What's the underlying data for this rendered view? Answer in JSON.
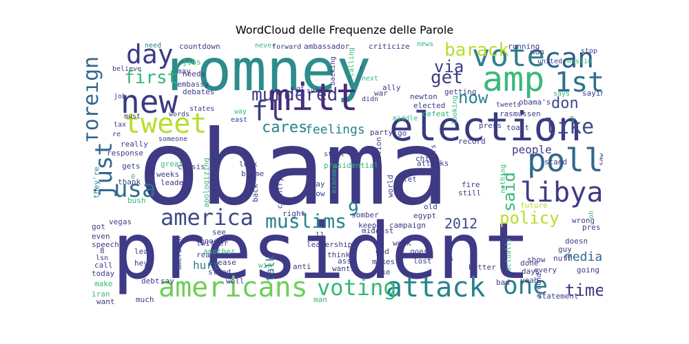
{
  "title": "WordCloud delle Frequenze delle Parole",
  "colors": [
    "#440154",
    "#482878",
    "#3e4989",
    "#31688e",
    "#26828e",
    "#1f9e89",
    "#35b779",
    "#6ece58",
    "#b5de2b",
    "#fde725"
  ],
  "words": [
    {
      "text": "obama",
      "size": 150,
      "color": "#3f3a84",
      "rotate": 0
    },
    {
      "text": "president",
      "size": 112,
      "color": "#3e3a86",
      "rotate": 0
    },
    {
      "text": "romney",
      "size": 84,
      "color": "#2d8c8c",
      "rotate": 0
    },
    {
      "text": "election",
      "size": 58,
      "color": "#3a3a82",
      "rotate": 0
    },
    {
      "text": "mitt",
      "size": 54,
      "color": "#462d78",
      "rotate": 0
    },
    {
      "text": "new",
      "size": 46,
      "color": "#3a3a80",
      "rotate": 0
    },
    {
      "text": "amp",
      "size": 50,
      "color": "#3bb87a",
      "rotate": 0
    },
    {
      "text": "vote",
      "size": 44,
      "color": "#2e7f8e",
      "rotate": 0
    },
    {
      "text": "can",
      "size": 40,
      "color": "#2b5f88",
      "rotate": 0
    },
    {
      "text": "1st",
      "size": 40,
      "color": "#2a6f8e",
      "rotate": 0
    },
    {
      "text": "poll",
      "size": 46,
      "color": "#31688e",
      "rotate": 0
    },
    {
      "text": "libya",
      "size": 40,
      "color": "#3e3a86",
      "rotate": 0
    },
    {
      "text": "tweet",
      "size": 40,
      "color": "#b5de2b",
      "rotate": 0
    },
    {
      "text": "fl",
      "size": 40,
      "color": "#3e3a86",
      "rotate": 0
    },
    {
      "text": "day",
      "size": 38,
      "color": "#3e3a86",
      "rotate": 0
    },
    {
      "text": "americans",
      "size": 40,
      "color": "#6ece58",
      "rotate": 0
    },
    {
      "text": "attack",
      "size": 40,
      "color": "#26828e",
      "rotate": 0
    },
    {
      "text": "voting",
      "size": 32,
      "color": "#35b779",
      "rotate": 0
    },
    {
      "text": "one",
      "size": 36,
      "color": "#26828e",
      "rotate": 0
    },
    {
      "text": "america",
      "size": 32,
      "color": "#3e4989",
      "rotate": 0
    },
    {
      "text": "muslims",
      "size": 28,
      "color": "#26828e",
      "rotate": 0
    },
    {
      "text": "usa",
      "size": 34,
      "color": "#2e6d8c",
      "rotate": 0
    },
    {
      "text": "just",
      "size": 34,
      "color": "#31688e",
      "rotate": 90
    },
    {
      "text": "foreign",
      "size": 30,
      "color": "#31688e",
      "rotate": 90
    },
    {
      "text": "murdered",
      "size": 26,
      "color": "#3e3a86",
      "rotate": 0
    },
    {
      "text": "first",
      "size": 26,
      "color": "#35b779",
      "rotate": 0
    },
    {
      "text": "barack",
      "size": 26,
      "color": "#b5de2b",
      "rotate": 0
    },
    {
      "text": "via",
      "size": 24,
      "color": "#3e3a86",
      "rotate": 0
    },
    {
      "text": "get",
      "size": 26,
      "color": "#3e3a86",
      "rotate": 0
    },
    {
      "text": "now",
      "size": 24,
      "color": "#26828e",
      "rotate": 0
    },
    {
      "text": "don",
      "size": 22,
      "color": "#3e4989",
      "rotate": 0
    },
    {
      "text": "like",
      "size": 30,
      "color": "#3e4989",
      "rotate": 0
    },
    {
      "text": "said",
      "size": 24,
      "color": "#35b779",
      "rotate": 90
    },
    {
      "text": "cares",
      "size": 22,
      "color": "#26828e",
      "rotate": 0
    },
    {
      "text": "feelings",
      "size": 18,
      "color": "#26828e",
      "rotate": 0
    },
    {
      "text": "9",
      "size": 26,
      "color": "#26828e",
      "rotate": 0
    },
    {
      "text": "policy",
      "size": 24,
      "color": "#b5de2b",
      "rotate": 0
    },
    {
      "text": "2012",
      "size": 20,
      "color": "#3e4989",
      "rotate": 0
    },
    {
      "text": "time",
      "size": 24,
      "color": "#3e3a86",
      "rotate": 0
    },
    {
      "text": "people",
      "size": 16,
      "color": "#3e3a86",
      "rotate": 0
    },
    {
      "text": "media",
      "size": 18,
      "color": "#31688e",
      "rotate": 0
    },
    {
      "text": "talk",
      "size": 16,
      "color": "#31688e",
      "rotate": 90
    },
    {
      "text": "hurt",
      "size": 16,
      "color": "#26828e",
      "rotate": 0
    },
    {
      "text": "ambassador",
      "size": 11,
      "color": "#3e3a86",
      "rotate": 0
    },
    {
      "text": "criticize",
      "size": 11,
      "color": "#3e3a86",
      "rotate": 0
    },
    {
      "text": "countdown",
      "size": 11,
      "color": "#3e3a86",
      "rotate": 0
    },
    {
      "text": "need",
      "size": 10,
      "color": "#26828e",
      "rotate": 0
    },
    {
      "text": "never",
      "size": 10,
      "color": "#35b779",
      "rotate": 0
    },
    {
      "text": "forward",
      "size": 10,
      "color": "#3e3a86",
      "rotate": 0
    },
    {
      "text": "news",
      "size": 10,
      "color": "#35b779",
      "rotate": 0
    },
    {
      "text": "running",
      "size": 11,
      "color": "#3e3a86",
      "rotate": 0
    },
    {
      "text": "won",
      "size": 11,
      "color": "#3e3a86",
      "rotate": 0
    },
    {
      "text": "stop",
      "size": 10,
      "color": "#3e3a86",
      "rotate": 0
    },
    {
      "text": "muslim",
      "size": 10,
      "color": "#35b779",
      "rotate": 0
    },
    {
      "text": "united",
      "size": 10,
      "color": "#3e3a86",
      "rotate": 0
    },
    {
      "text": "saying",
      "size": 11,
      "color": "#3e3a86",
      "rotate": 0
    },
    {
      "text": "says",
      "size": 10,
      "color": "#35b779",
      "rotate": 0
    },
    {
      "text": "tweets",
      "size": 10,
      "color": "#3e3a86",
      "rotate": 0
    },
    {
      "text": "obama's",
      "size": 11,
      "color": "#3e3a86",
      "rotate": 0
    },
    {
      "text": "rasmussen",
      "size": 11,
      "color": "#3e3a86",
      "rotate": 0
    },
    {
      "text": "toast",
      "size": 11,
      "color": "#3e3a86",
      "rotate": 0
    },
    {
      "text": "press",
      "size": 11,
      "color": "#3e3a86",
      "rotate": 0
    },
    {
      "text": "getting",
      "size": 11,
      "color": "#3e3a86",
      "rotate": 0
    },
    {
      "text": "newton",
      "size": 11,
      "color": "#3e3a86",
      "rotate": 0
    },
    {
      "text": "elected",
      "size": 11,
      "color": "#3e3a86",
      "rotate": 0
    },
    {
      "text": "defeat",
      "size": 11,
      "color": "#35b779",
      "rotate": 0
    },
    {
      "text": "middle",
      "size": 10,
      "color": "#35b779",
      "rotate": 0
    },
    {
      "text": "party",
      "size": 11,
      "color": "#3e3a86",
      "rotate": 0
    },
    {
      "text": "go",
      "size": 11,
      "color": "#3e3a86",
      "rotate": 0
    },
    {
      "text": "sure",
      "size": 10,
      "color": "#3e3a86",
      "rotate": 0
    },
    {
      "text": "war",
      "size": 11,
      "color": "#3e3a86",
      "rotate": 0
    },
    {
      "text": "ally",
      "size": 11,
      "color": "#3e3a86",
      "rotate": 0
    },
    {
      "text": "next",
      "size": 10,
      "color": "#35b779",
      "rotate": 0
    },
    {
      "text": "didn",
      "size": 10,
      "color": "#3e3a86",
      "rotate": 0
    },
    {
      "text": "east",
      "size": 10,
      "color": "#3e3a86",
      "rotate": 0
    },
    {
      "text": "way",
      "size": 10,
      "color": "#35b779",
      "rotate": 0
    },
    {
      "text": "gt",
      "size": 10,
      "color": "#3e3a86",
      "rotate": 0
    },
    {
      "text": "jobs",
      "size": 11,
      "color": "#35b779",
      "rotate": 0
    },
    {
      "text": "may",
      "size": 11,
      "color": "#3e3a86",
      "rotate": 0
    },
    {
      "text": "needs",
      "size": 11,
      "color": "#3e3a86",
      "rotate": 0
    },
    {
      "text": "embassy",
      "size": 11,
      "color": "#3e3a86",
      "rotate": 0
    },
    {
      "text": "debates",
      "size": 11,
      "color": "#3e3a86",
      "rotate": 0
    },
    {
      "text": "states",
      "size": 10,
      "color": "#3e3a86",
      "rotate": 0
    },
    {
      "text": "words",
      "size": 10,
      "color": "#3e3a86",
      "rotate": 0
    },
    {
      "text": "must",
      "size": 10,
      "color": "#3e3a86",
      "rotate": 0
    },
    {
      "text": "believe",
      "size": 10,
      "color": "#3e3a86",
      "rotate": 0
    },
    {
      "text": "job",
      "size": 10,
      "color": "#3e3a86",
      "rotate": 0
    },
    {
      "text": "tax",
      "size": 10,
      "color": "#3e3a86",
      "rotate": 0
    },
    {
      "text": "re",
      "size": 10,
      "color": "#3e3a86",
      "rotate": 0
    },
    {
      "text": "really",
      "size": 11,
      "color": "#3e3a86",
      "rotate": 0
    },
    {
      "text": "someone",
      "size": 10,
      "color": "#3e3a86",
      "rotate": 0
    },
    {
      "text": "response",
      "size": 11,
      "color": "#3e3a86",
      "rotate": 0
    },
    {
      "text": "fuck",
      "size": 10,
      "color": "#3e3a86",
      "rotate": 0
    },
    {
      "text": "start",
      "size": 10,
      "color": "#3e3a86",
      "rotate": 0
    },
    {
      "text": "presidential",
      "size": 11,
      "color": "#35b779",
      "rotate": 0
    },
    {
      "text": "look",
      "size": 11,
      "color": "#3e3a86",
      "rotate": 0
    },
    {
      "text": "blame",
      "size": 11,
      "color": "#3e3a86",
      "rotate": 0
    },
    {
      "text": "great",
      "size": 11,
      "color": "#35b779",
      "rotate": 0
    },
    {
      "text": "weeks",
      "size": 11,
      "color": "#3e3a86",
      "rotate": 0
    },
    {
      "text": "crisis",
      "size": 11,
      "color": "#3e3a86",
      "rotate": 0
    },
    {
      "text": "leader",
      "size": 11,
      "color": "#3e3a86",
      "rotate": 0
    },
    {
      "text": "gets",
      "size": 11,
      "color": "#3e3a86",
      "rotate": 0
    },
    {
      "text": "thank",
      "size": 11,
      "color": "#3e3a86",
      "rotate": 0
    },
    {
      "text": "bush",
      "size": 11,
      "color": "#35b779",
      "rotate": 0
    },
    {
      "text": "they're",
      "size": 11,
      "color": "#26828e",
      "rotate": 90
    },
    {
      "text": "apologizing",
      "size": 11,
      "color": "#35b779",
      "rotate": 90
    },
    {
      "text": "back",
      "size": 11,
      "color": "#3e3a86",
      "rotate": 90
    },
    {
      "text": "country",
      "size": 11,
      "color": "#3e3a86",
      "rotate": 90
    },
    {
      "text": "away",
      "size": 11,
      "color": "#3e3a86",
      "rotate": 0
    },
    {
      "text": "know",
      "size": 11,
      "color": "#3e3a86",
      "rotate": 0
    },
    {
      "text": "economy",
      "size": 10,
      "color": "#35b779",
      "rotate": 90
    },
    {
      "text": "administration",
      "size": 11,
      "color": "#3e3a86",
      "rotate": 90
    },
    {
      "text": "world",
      "size": 11,
      "color": "#3e3a86",
      "rotate": 90
    },
    {
      "text": "china",
      "size": 11,
      "color": "#3e3a86",
      "rotate": 0
    },
    {
      "text": "attacks",
      "size": 11,
      "color": "#3e3a86",
      "rotate": 0
    },
    {
      "text": "let",
      "size": 11,
      "color": "#3e3a86",
      "rotate": 0
    },
    {
      "text": "2",
      "size": 11,
      "color": "#3e3a86",
      "rotate": 0
    },
    {
      "text": "years",
      "size": 10,
      "color": "#3e3a86",
      "rotate": 90
    },
    {
      "text": "record",
      "size": 11,
      "color": "#3e3a86",
      "rotate": 0
    },
    {
      "text": "stand",
      "size": 11,
      "color": "#3e3a86",
      "rotate": 0
    },
    {
      "text": "fire",
      "size": 11,
      "color": "#3e3a86",
      "rotate": 0
    },
    {
      "text": "still",
      "size": 11,
      "color": "#3e3a86",
      "rotate": 0
    },
    {
      "text": "nothing",
      "size": 10,
      "color": "#35b779",
      "rotate": 90
    },
    {
      "text": "saw",
      "size": 10,
      "color": "#3e3a86",
      "rotate": 90
    },
    {
      "text": "future",
      "size": 11,
      "color": "#b5de2b",
      "rotate": 0
    },
    {
      "text": "wrong",
      "size": 11,
      "color": "#3e3a86",
      "rotate": 0
    },
    {
      "text": "pres",
      "size": 11,
      "color": "#3e3a86",
      "rotate": 0
    },
    {
      "text": "doesn",
      "size": 11,
      "color": "#3e3a86",
      "rotate": 0
    },
    {
      "text": "guy",
      "size": 11,
      "color": "#3e3a86",
      "rotate": 0
    },
    {
      "text": "nuff",
      "size": 11,
      "color": "#3e3a86",
      "rotate": 0
    },
    {
      "text": "show",
      "size": 11,
      "color": "#3e3a86",
      "rotate": 0
    },
    {
      "text": "done",
      "size": 11,
      "color": "#3e3a86",
      "rotate": 0
    },
    {
      "text": "every",
      "size": 11,
      "color": "#3e3a86",
      "rotate": 0
    },
    {
      "text": "days",
      "size": 11,
      "color": "#3e3a86",
      "rotate": 0
    },
    {
      "text": "yeah",
      "size": 11,
      "color": "#3e3a86",
      "rotate": 0
    },
    {
      "text": "going",
      "size": 11,
      "color": "#3e3a86",
      "rotate": 0
    },
    {
      "text": "better",
      "size": 11,
      "color": "#3e3a86",
      "rotate": 0
    },
    {
      "text": "actually",
      "size": 10,
      "color": "#35b779",
      "rotate": 90
    },
    {
      "text": "bad",
      "size": 11,
      "color": "#3e3a86",
      "rotate": 0
    },
    {
      "text": "around",
      "size": 10,
      "color": "#3e3a86",
      "rotate": 90
    },
    {
      "text": "statement",
      "size": 11,
      "color": "#3e3a86",
      "rotate": 0
    },
    {
      "text": "old",
      "size": 11,
      "color": "#3e3a86",
      "rotate": 0
    },
    {
      "text": "egypt",
      "size": 11,
      "color": "#3e3a86",
      "rotate": 0
    },
    {
      "text": "campaign",
      "size": 11,
      "color": "#3e3a86",
      "rotate": 0
    },
    {
      "text": "mideast",
      "size": 11,
      "color": "#3e3a86",
      "rotate": 0
    },
    {
      "text": "keep",
      "size": 11,
      "color": "#3e3a86",
      "rotate": 0
    },
    {
      "text": "somber",
      "size": 11,
      "color": "#3e3a86",
      "rotate": 0
    },
    {
      "text": "right",
      "size": 11,
      "color": "#3e3a86",
      "rotate": 0
    },
    {
      "text": "weak",
      "size": 11,
      "color": "#3e3a86",
      "rotate": 0
    },
    {
      "text": "god",
      "size": 11,
      "color": "#3e3a86",
      "rotate": 0
    },
    {
      "text": "leadership",
      "size": 11,
      "color": "#3e3a86",
      "rotate": 0
    },
    {
      "text": "ll",
      "size": 11,
      "color": "#3e3a86",
      "rotate": 0
    },
    {
      "text": "goes",
      "size": 11,
      "color": "#3e3a86",
      "rotate": 0
    },
    {
      "text": "think",
      "size": 11,
      "color": "#3e3a86",
      "rotate": 0
    },
    {
      "text": "ass",
      "size": 11,
      "color": "#3e3a86",
      "rotate": 0
    },
    {
      "text": "makes",
      "size": 11,
      "color": "#3e3a86",
      "rotate": 0
    },
    {
      "text": "lost",
      "size": 11,
      "color": "#3e3a86",
      "rotate": 0
    },
    {
      "text": "vs",
      "size": 11,
      "color": "#3e3a86",
      "rotate": 0
    },
    {
      "text": "wants",
      "size": 11,
      "color": "#3e3a86",
      "rotate": 0
    },
    {
      "text": "take",
      "size": 11,
      "color": "#3e3a86",
      "rotate": 0
    },
    {
      "text": "anti",
      "size": 11,
      "color": "#3e3a86",
      "rotate": 0
    },
    {
      "text": "win",
      "size": 11,
      "color": "#35b779",
      "rotate": 0
    },
    {
      "text": "well",
      "size": 11,
      "color": "#3e3a86",
      "rotate": 0
    },
    {
      "text": "stood",
      "size": 11,
      "color": "#3e3a86",
      "rotate": 0
    },
    {
      "text": "please",
      "size": 11,
      "color": "#3e3a86",
      "rotate": 0
    },
    {
      "text": "real",
      "size": 11,
      "color": "#3e3a86",
      "rotate": 0
    },
    {
      "text": "twitter",
      "size": 11,
      "color": "#3e3a86",
      "rotate": 0
    },
    {
      "text": "another",
      "size": 11,
      "color": "#35b779",
      "rotate": 0
    },
    {
      "text": "american",
      "size": 10,
      "color": "#3e3a86",
      "rotate": 90
    },
    {
      "text": "see",
      "size": 11,
      "color": "#3e3a86",
      "rotate": 0
    },
    {
      "text": "good",
      "size": 11,
      "color": "#3e3a86",
      "rotate": 0
    },
    {
      "text": "vegas",
      "size": 11,
      "color": "#3e3a86",
      "rotate": 0
    },
    {
      "text": "got",
      "size": 11,
      "color": "#3e3a86",
      "rotate": 0
    },
    {
      "text": "even",
      "size": 11,
      "color": "#3e3a86",
      "rotate": 0
    },
    {
      "text": "speech",
      "size": 11,
      "color": "#3e3a86",
      "rotate": 0
    },
    {
      "text": "8",
      "size": 11,
      "color": "#3e3a86",
      "rotate": 0
    },
    {
      "text": "lsn",
      "size": 10,
      "color": "#3e3a86",
      "rotate": 0
    },
    {
      "text": "call",
      "size": 11,
      "color": "#3e3a86",
      "rotate": 0
    },
    {
      "text": "today",
      "size": 11,
      "color": "#3e3a86",
      "rotate": 0
    },
    {
      "text": "make",
      "size": 11,
      "color": "#35b779",
      "rotate": 0
    },
    {
      "text": "iran",
      "size": 11,
      "color": "#35b779",
      "rotate": 0
    },
    {
      "text": "want",
      "size": 11,
      "color": "#3e3a86",
      "rotate": 0
    },
    {
      "text": "lead",
      "size": 11,
      "color": "#3e3a86",
      "rotate": 0
    },
    {
      "text": "hey",
      "size": 11,
      "color": "#3e3a86",
      "rotate": 0
    },
    {
      "text": "say",
      "size": 11,
      "color": "#3e3a86",
      "rotate": 0
    },
    {
      "text": "debt",
      "size": 11,
      "color": "#3e3a86",
      "rotate": 0
    },
    {
      "text": "much",
      "size": 11,
      "color": "#3e3a86",
      "rotate": 0
    },
    {
      "text": "man",
      "size": 11,
      "color": "#35b779",
      "rotate": 0
    },
    {
      "text": "backing",
      "size": 10,
      "color": "#3e3a86",
      "rotate": 90
    },
    {
      "text": "calling",
      "size": 10,
      "color": "#35b779",
      "rotate": 90
    },
    {
      "text": "looking",
      "size": 10,
      "color": "#35b779",
      "rotate": 90
    },
    {
      "text": "5",
      "size": 11,
      "color": "#35b779",
      "rotate": 0
    },
    {
      "text": "r",
      "size": 10,
      "color": "#3e3a86",
      "rotate": 0
    },
    {
      "text": "mr",
      "size": 10,
      "color": "#3e3a86",
      "rotate": 0
    },
    {
      "text": "oh",
      "size": 10,
      "color": "#35b779",
      "rotate": 90
    },
    {
      "text": "0",
      "size": 10,
      "color": "#35b779",
      "rotate": 0
    }
  ]
}
